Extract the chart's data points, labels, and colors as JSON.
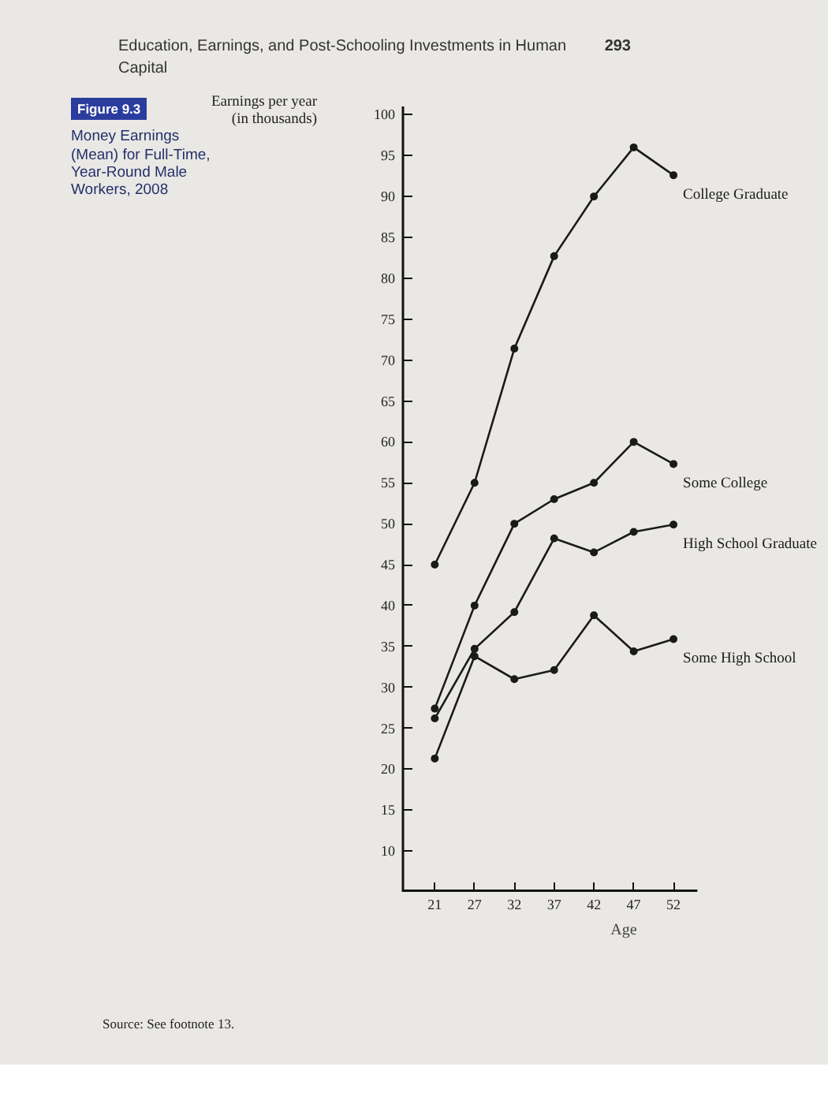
{
  "chart_data": {
    "type": "line",
    "title": "Money Earnings (Mean) for Full-Time, Year-Round Male Workers, 2008",
    "xlabel": "Age",
    "ylabel": "Earnings per year (in thousands)",
    "categories": [
      "21",
      "27",
      "32",
      "37",
      "42",
      "47",
      "52"
    ],
    "series": [
      {
        "name": "College Graduate",
        "color": "#1a1a1a",
        "values": [
          45,
          55,
          71.4,
          82.7,
          90,
          96,
          92.6
        ]
      },
      {
        "name": "Some College",
        "color": "#1a1a1a",
        "values": [
          27.4,
          40,
          50,
          53,
          55,
          60,
          57.3
        ]
      },
      {
        "name": "High School Graduate",
        "color": "#1a1a1a",
        "values": [
          26.2,
          34.7,
          39.2,
          48.2,
          46.5,
          49,
          49.9
        ]
      },
      {
        "name": "Some High School",
        "color": "#1a1a1a",
        "values": [
          21.3,
          33.8,
          31,
          32.1,
          38.8,
          34.4,
          35.9
        ]
      }
    ],
    "ylim": [
      5,
      101
    ],
    "yticks": [
      10,
      15,
      20,
      25,
      30,
      35,
      40,
      45,
      50,
      55,
      60,
      65,
      70,
      75,
      80,
      85,
      90,
      95,
      100
    ],
    "annotations": [
      "Figure 9.3",
      "Education, Earnings, and Post-Schooling Investments in Human Capital",
      "293",
      "Source: See footnote 13."
    ],
    "marker": "circle",
    "line_style": "solid"
  }
}
